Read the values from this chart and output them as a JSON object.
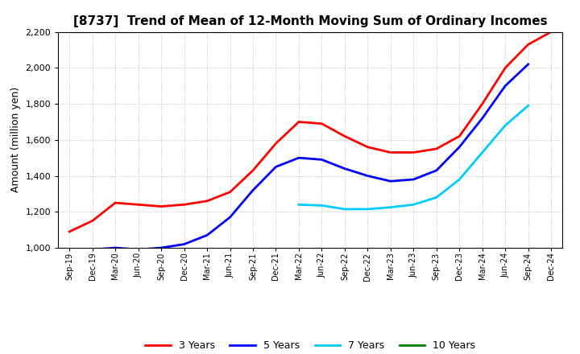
{
  "title": "[8737]  Trend of Mean of 12-Month Moving Sum of Ordinary Incomes",
  "ylabel": "Amount (million yen)",
  "ylim": [
    1000,
    2200
  ],
  "yticks": [
    1000,
    1200,
    1400,
    1600,
    1800,
    2000,
    2200
  ],
  "x_labels": [
    "Sep-19",
    "Dec-19",
    "Mar-20",
    "Jun-20",
    "Sep-20",
    "Dec-20",
    "Mar-21",
    "Jun-21",
    "Sep-21",
    "Dec-21",
    "Mar-22",
    "Jun-22",
    "Sep-22",
    "Dec-22",
    "Mar-23",
    "Jun-23",
    "Sep-23",
    "Dec-23",
    "Mar-24",
    "Jun-24",
    "Sep-24",
    "Dec-24"
  ],
  "series": {
    "3 Years": {
      "color": "#FF0000",
      "data": [
        1090,
        1150,
        1250,
        1240,
        1230,
        1240,
        1260,
        1310,
        1430,
        1580,
        1700,
        1690,
        1620,
        1560,
        1530,
        1530,
        1550,
        1620,
        1800,
        2000,
        2130,
        2200
      ]
    },
    "5 Years": {
      "color": "#0000FF",
      "data": [
        null,
        990,
        1000,
        990,
        1000,
        1020,
        1070,
        1170,
        1320,
        1450,
        1500,
        1490,
        1440,
        1400,
        1370,
        1380,
        1430,
        1560,
        1720,
        1900,
        2020,
        null
      ]
    },
    "7 Years": {
      "color": "#00CCFF",
      "data": [
        null,
        null,
        null,
        null,
        null,
        null,
        null,
        null,
        null,
        null,
        1240,
        1235,
        1215,
        1215,
        1225,
        1240,
        1280,
        1380,
        1530,
        1680,
        1790,
        null
      ]
    },
    "10 Years": {
      "color": "#008000",
      "data": [
        null,
        null,
        null,
        null,
        null,
        null,
        null,
        null,
        null,
        null,
        null,
        null,
        null,
        null,
        null,
        null,
        null,
        null,
        null,
        null,
        null,
        null
      ]
    }
  },
  "legend_entries": [
    "3 Years",
    "5 Years",
    "7 Years",
    "10 Years"
  ],
  "legend_colors": [
    "#FF0000",
    "#0000FF",
    "#00CCFF",
    "#008000"
  ],
  "background_color": "#FFFFFF",
  "grid_color": "#AAAAAA",
  "title_fontsize": 11,
  "ylabel_fontsize": 9,
  "tick_fontsize": 8,
  "xtick_fontsize": 7,
  "legend_fontsize": 9,
  "linewidth": 2.0
}
